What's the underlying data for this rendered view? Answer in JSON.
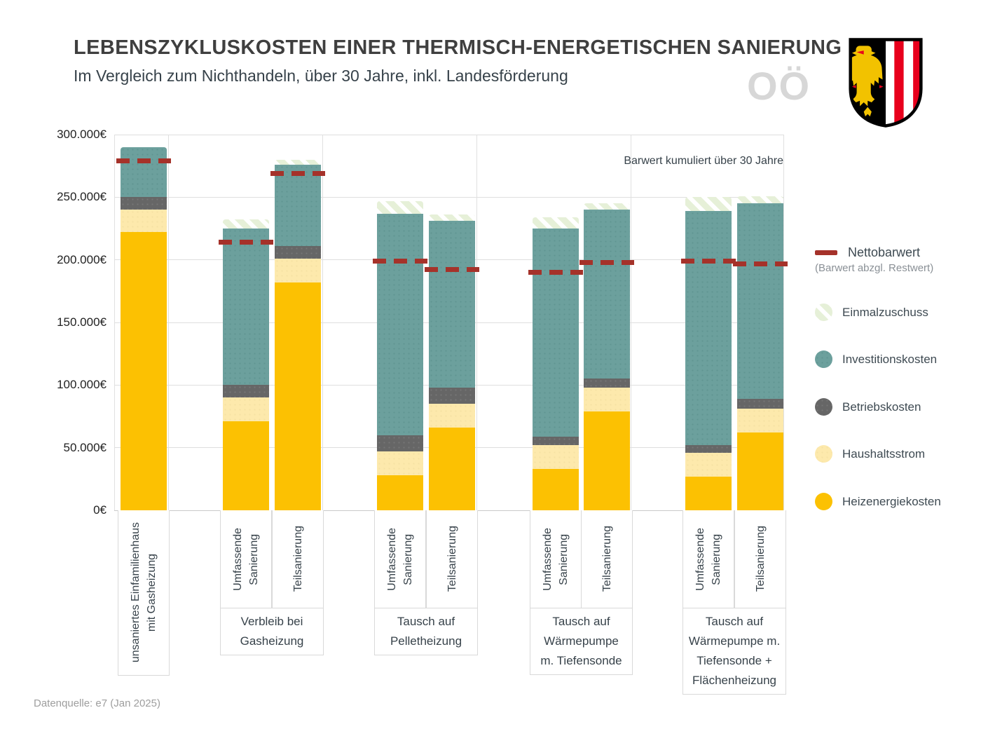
{
  "header": {
    "title": "LEBENSZYKLUSKOSTEN EINER THERMISCH-ENERGETISCHEN SANIERUNG",
    "subtitle": "Im Vergleich zum Nichthandeln, über 30 Jahre, inkl. Landesförderung",
    "watermark": "OÖ"
  },
  "annotation": "Barwert kumuliert über 30 Jahre",
  "footer": {
    "source": "Datenquelle: e7 (Jan 2025)"
  },
  "legend": {
    "netto": {
      "label": "Nettobarwert",
      "sublabel": "(Barwert abzgl. Restwert)"
    },
    "items": [
      {
        "key": "zuschuss",
        "label": "Einmalzuschuss"
      },
      {
        "key": "invest",
        "label": "Investitionskosten"
      },
      {
        "key": "betrieb",
        "label": "Betriebskosten"
      },
      {
        "key": "strom",
        "label": "Haushaltsstrom"
      },
      {
        "key": "heiz",
        "label": "Heizenergiekosten"
      }
    ]
  },
  "colors": {
    "heizenergiekosten": "#fcc102",
    "haushaltsstrom": "#fde9ac",
    "betriebskosten": "#666666",
    "investitionskosten": "#6ca09d",
    "einmalzuschuss": "#e6f0d8",
    "nettobarwert": "#a5322a"
  },
  "chart_data": {
    "type": "bar",
    "stacked": true,
    "title": "Lebenszykluskosten einer thermisch-energetischen Sanierung",
    "xlabel": "",
    "ylabel": "",
    "ylim": [
      0,
      300000
    ],
    "grid": true,
    "legend_position": "right",
    "y_ticks": [
      {
        "value": 0,
        "label": "0€"
      },
      {
        "value": 50000,
        "label": "50.000€"
      },
      {
        "value": 100000,
        "label": "100.000€"
      },
      {
        "value": 150000,
        "label": "150.000€"
      },
      {
        "value": 200000,
        "label": "200.000€"
      },
      {
        "value": 250000,
        "label": "250.000€"
      },
      {
        "value": 300000,
        "label": "300.000€"
      }
    ],
    "series_order": [
      "heiz",
      "strom",
      "betrieb",
      "invest",
      "zuschuss"
    ],
    "series_names": {
      "heiz": "Heizenergiekosten",
      "strom": "Haushaltsstrom",
      "betrieb": "Betriebskosten",
      "invest": "Investitionskosten",
      "zuschuss": "Einmalzuschuss",
      "netto": "Nettobarwert (Barwert abzgl. Restwert)"
    },
    "groups": [
      {
        "caption_lines": [],
        "bars": [
          {
            "label_lines": [
              "unsaniertes Einfamilienhaus",
              "mit Gasheizung"
            ],
            "values": {
              "heiz": 222000,
              "strom": 18000,
              "betrieb": 10000,
              "invest": 40000,
              "zuschuss": 0
            },
            "total": 290000,
            "nettobarwert": 279000
          }
        ]
      },
      {
        "caption_lines": [
          "Verbleib bei",
          "Gasheizung"
        ],
        "bars": [
          {
            "label_lines": [
              "Umfassende",
              "Sanierung"
            ],
            "values": {
              "heiz": 71000,
              "strom": 19000,
              "betrieb": 10000,
              "invest": 125000,
              "zuschuss": 7000
            },
            "total": 232000,
            "nettobarwert": 214000
          },
          {
            "label_lines": [
              "Teilsanierung"
            ],
            "values": {
              "heiz": 182000,
              "strom": 19000,
              "betrieb": 10000,
              "invest": 65000,
              "zuschuss": 4000
            },
            "total": 280000,
            "nettobarwert": 269000
          }
        ]
      },
      {
        "caption_lines": [
          "Tausch auf",
          "Pelletheizung"
        ],
        "bars": [
          {
            "label_lines": [
              "Umfassende",
              "Sanierung"
            ],
            "values": {
              "heiz": 28000,
              "strom": 19000,
              "betrieb": 13000,
              "invest": 177000,
              "zuschuss": 10000
            },
            "total": 247000,
            "nettobarwert": 199000
          },
          {
            "label_lines": [
              "Teilsanierung"
            ],
            "values": {
              "heiz": 66000,
              "strom": 19000,
              "betrieb": 13000,
              "invest": 133000,
              "zuschuss": 5000
            },
            "total": 236000,
            "nettobarwert": 192000
          }
        ]
      },
      {
        "caption_lines": [
          "Tausch auf",
          "Wärmepumpe",
          "m. Tiefensonde"
        ],
        "bars": [
          {
            "label_lines": [
              "Umfassende",
              "Sanierung"
            ],
            "values": {
              "heiz": 33000,
              "strom": 19000,
              "betrieb": 7000,
              "invest": 166000,
              "zuschuss": 9000
            },
            "total": 234000,
            "nettobarwert": 190000
          },
          {
            "label_lines": [
              "Teilsanierung"
            ],
            "values": {
              "heiz": 79000,
              "strom": 19000,
              "betrieb": 7000,
              "invest": 135000,
              "zuschuss": 5000
            },
            "total": 245000,
            "nettobarwert": 198000
          }
        ]
      },
      {
        "caption_lines": [
          "Tausch auf",
          "Wärmepumpe m.",
          "Tiefensonde +",
          "Flächenheizung"
        ],
        "bars": [
          {
            "label_lines": [
              "Umfassende",
              "Sanierung"
            ],
            "values": {
              "heiz": 27000,
              "strom": 19000,
              "betrieb": 6000,
              "invest": 187000,
              "zuschuss": 11000
            },
            "total": 250000,
            "nettobarwert": 199000
          },
          {
            "label_lines": [
              "Teilsanierung"
            ],
            "values": {
              "heiz": 62000,
              "strom": 19000,
              "betrieb": 8000,
              "invest": 156000,
              "zuschuss": 6000
            },
            "total": 251000,
            "nettobarwert": 197000
          }
        ]
      }
    ]
  }
}
